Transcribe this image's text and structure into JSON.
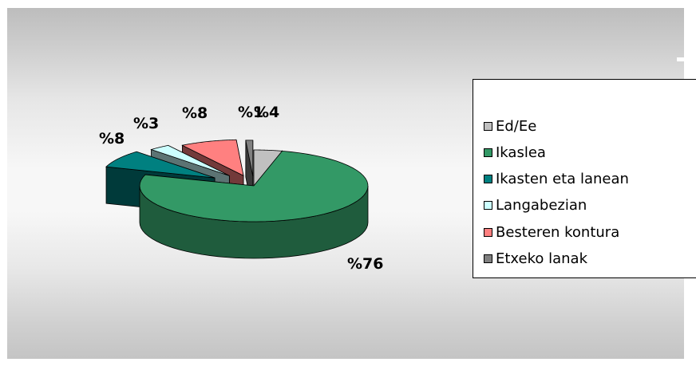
{
  "chart_data": {
    "type": "pie",
    "style": "3d-exploded",
    "categories": [
      "Ed/Ee",
      "Ikaslea",
      "Ikasten eta lanean",
      "Langabezian",
      "Besteren kontura",
      "Etxeko lanak"
    ],
    "values": [
      4,
      76,
      8,
      3,
      8,
      1
    ],
    "data_labels": [
      "%4",
      "%76",
      "%8",
      "%3",
      "%8",
      "%1"
    ],
    "colors": [
      "#c0c0c0",
      "#339966",
      "#008080",
      "#ccffff",
      "#ff8080",
      "#808080"
    ],
    "legend_position": "right"
  }
}
